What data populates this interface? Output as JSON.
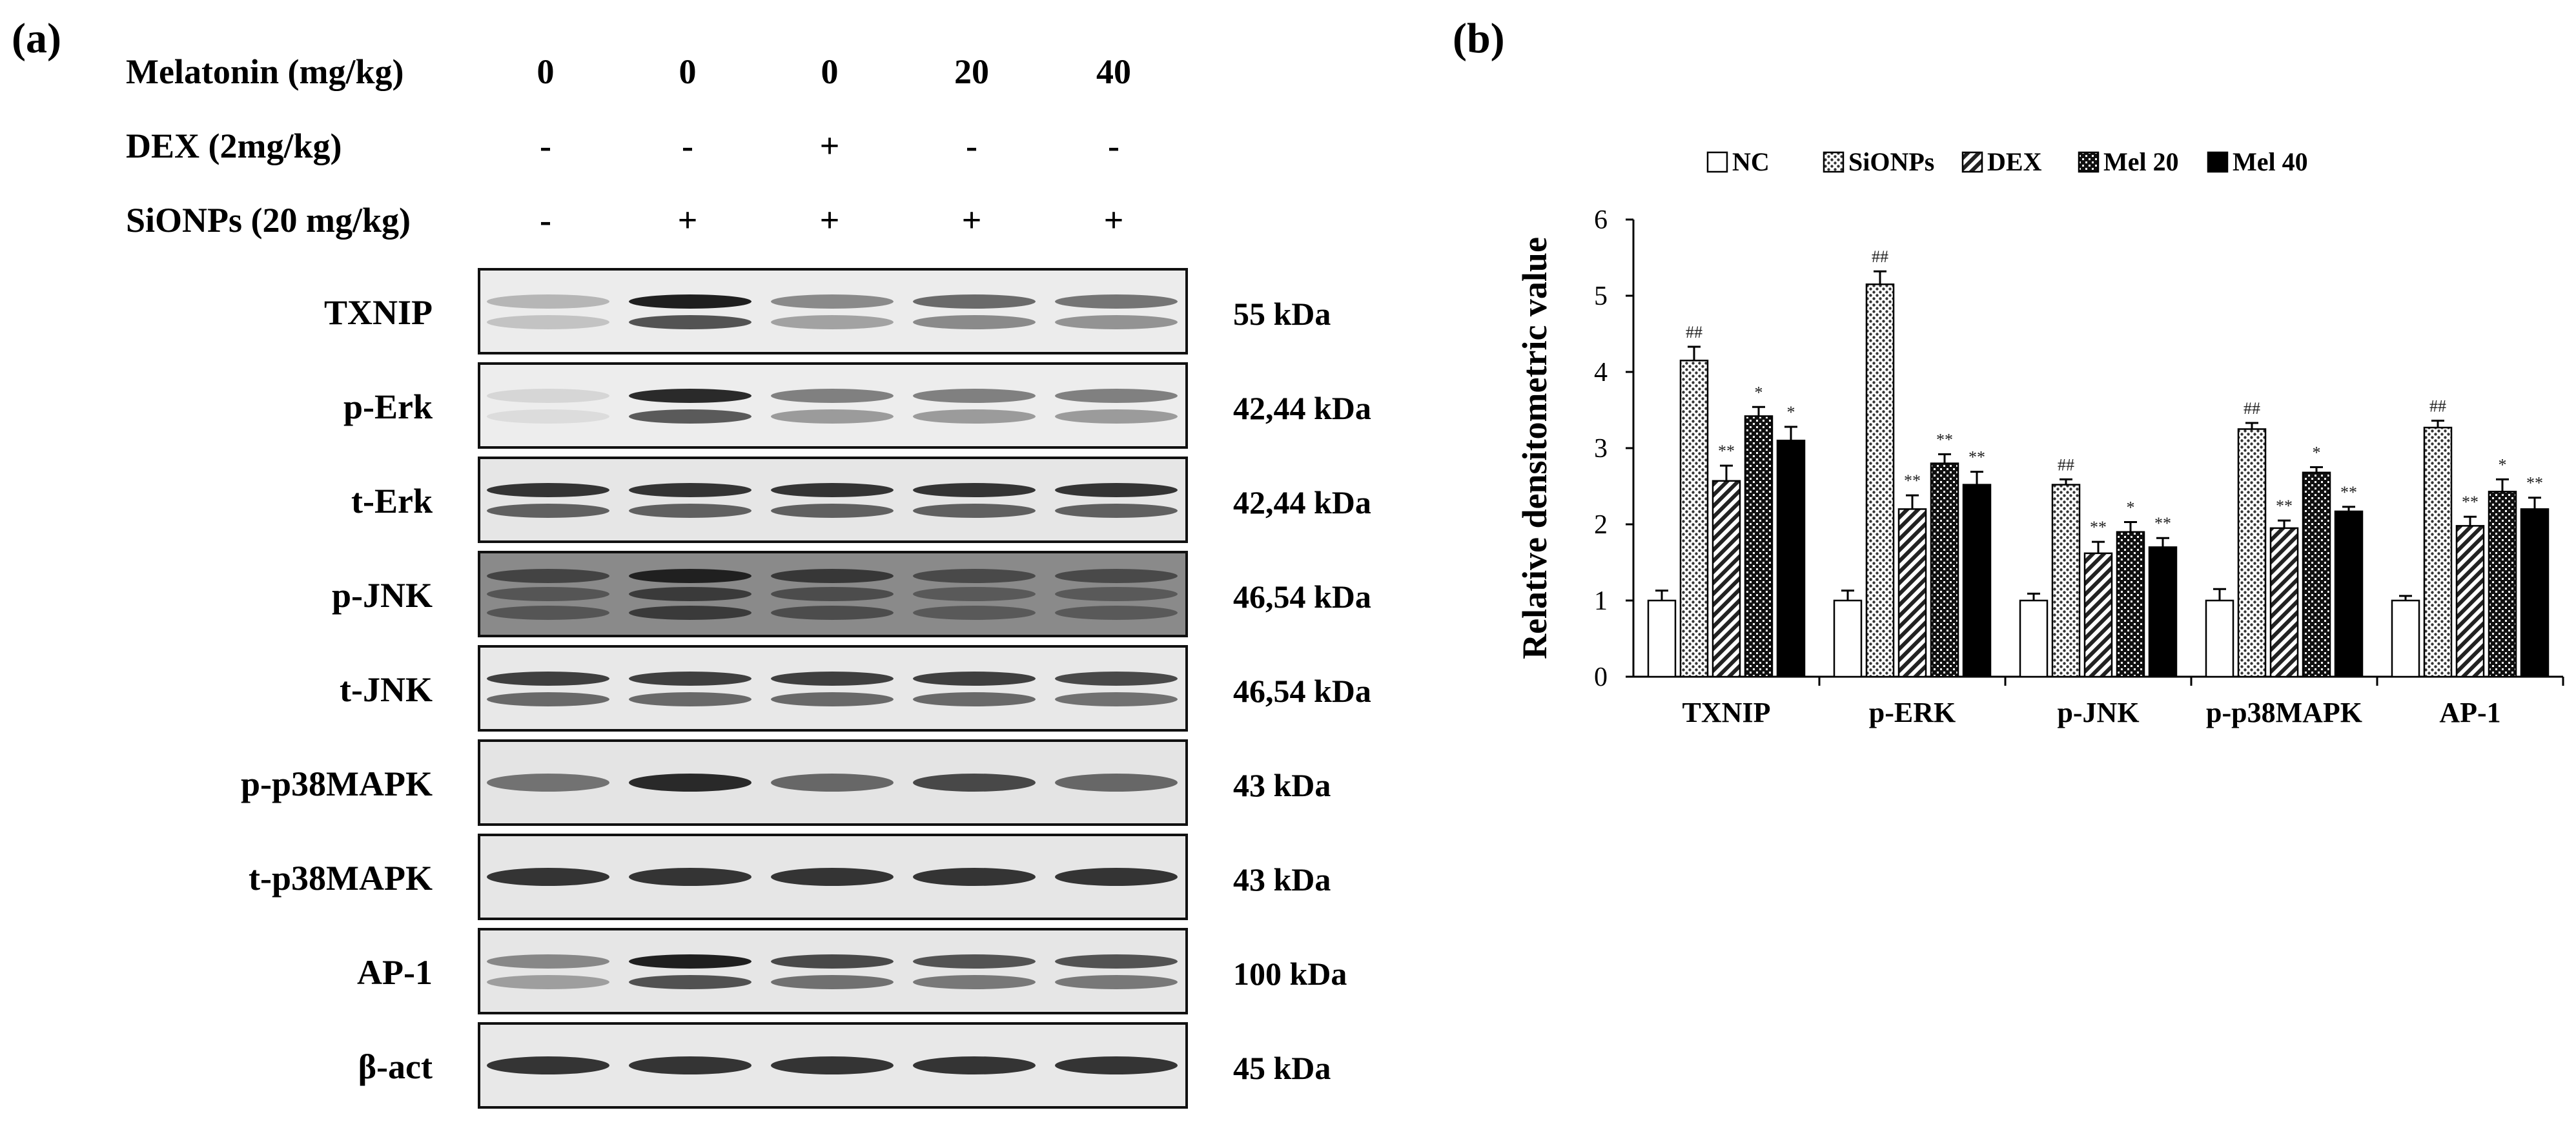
{
  "panel_a": {
    "label": "(a)",
    "conditions": [
      {
        "label": "Melatonin (mg/kg)",
        "values": [
          "0",
          "0",
          "0",
          "20",
          "40"
        ]
      },
      {
        "label": "DEX (2mg/kg)",
        "values": [
          "-",
          "-",
          "+",
          "-",
          "-"
        ]
      },
      {
        "label": "SiONPs (20 mg/kg)",
        "values": [
          "-",
          "+",
          "+",
          "+",
          "+"
        ]
      }
    ],
    "blots": [
      {
        "label": "TXNIP",
        "kda": "55 kDa",
        "bg": "#ececec",
        "intensity": [
          0.25,
          0.95,
          0.45,
          0.6,
          0.55
        ],
        "bands": 2
      },
      {
        "label": "p-Erk",
        "kda": "42,44 kDa",
        "bg": "#ededed",
        "intensity": [
          0.1,
          0.9,
          0.5,
          0.5,
          0.5
        ],
        "bands": 2
      },
      {
        "label": "t-Erk",
        "kda": "42,44 kDa",
        "bg": "#e6e6e6",
        "intensity": [
          0.85,
          0.85,
          0.85,
          0.85,
          0.85
        ],
        "bands": 2
      },
      {
        "label": "p-JNK",
        "kda": "46,54 kDa",
        "bg": "#8a8a8a",
        "intensity": [
          0.6,
          0.9,
          0.7,
          0.55,
          0.55
        ],
        "bands": 3
      },
      {
        "label": "t-JNK",
        "kda": "46,54 kDa",
        "bg": "#e8e8e8",
        "intensity": [
          0.8,
          0.8,
          0.8,
          0.8,
          0.75
        ],
        "bands": 2
      },
      {
        "label": "p-p38MAPK",
        "kda": "43 kDa",
        "bg": "#e4e4e4",
        "intensity": [
          0.55,
          0.9,
          0.6,
          0.75,
          0.6
        ],
        "bands": 1
      },
      {
        "label": "t-p38MAPK",
        "kda": "43 kDa",
        "bg": "#e6e6e6",
        "intensity": [
          0.85,
          0.85,
          0.85,
          0.85,
          0.85
        ],
        "bands": 1
      },
      {
        "label": "AP-1",
        "kda": "100 kDa",
        "bg": "#e6e6e6",
        "intensity": [
          0.45,
          0.95,
          0.75,
          0.7,
          0.7
        ],
        "bands": 2
      },
      {
        "label": "β-act",
        "kda": "45 kDa",
        "bg": "#e8e8e8",
        "intensity": [
          0.85,
          0.85,
          0.85,
          0.85,
          0.85
        ],
        "bands": 1
      }
    ]
  },
  "panel_b": {
    "label": "(b)"
  },
  "chart_data": {
    "type": "bar",
    "title": "",
    "xlabel": "",
    "ylabel": "Relative densitometric value",
    "ylim": [
      0,
      6
    ],
    "yticks": [
      "0",
      "1",
      "2",
      "3",
      "4",
      "5",
      "6"
    ],
    "categories": [
      "TXNIP",
      "p-ERK",
      "p-JNK",
      "p-p38MAPK",
      "AP-1"
    ],
    "legend_position": "top",
    "series": [
      {
        "name": "NC",
        "pattern": "white",
        "values": [
          1.0,
          1.0,
          1.0,
          1.0,
          1.0
        ],
        "errors": [
          0.13,
          0.13,
          0.09,
          0.15,
          0.06
        ],
        "labels": [
          "",
          "",
          "",
          "",
          ""
        ]
      },
      {
        "name": "SiONPs",
        "pattern": "dots",
        "values": [
          4.15,
          5.15,
          2.52,
          3.25,
          3.27
        ],
        "errors": [
          0.18,
          0.17,
          0.07,
          0.08,
          0.09
        ],
        "labels": [
          "##",
          "##",
          "##",
          "##",
          "##"
        ]
      },
      {
        "name": "DEX",
        "pattern": "diagonal",
        "values": [
          2.57,
          2.2,
          1.62,
          1.95,
          1.98
        ],
        "errors": [
          0.2,
          0.18,
          0.15,
          0.1,
          0.12
        ],
        "labels": [
          "**",
          "**",
          "**",
          "**",
          "**"
        ]
      },
      {
        "name": "Mel 20",
        "pattern": "checker",
        "values": [
          3.42,
          2.8,
          1.9,
          2.68,
          2.43
        ],
        "errors": [
          0.12,
          0.12,
          0.13,
          0.07,
          0.16
        ],
        "labels": [
          "*",
          "**",
          "*",
          "*",
          "*"
        ]
      },
      {
        "name": "Mel 40",
        "pattern": "black",
        "values": [
          3.1,
          2.52,
          1.7,
          2.17,
          2.2
        ],
        "errors": [
          0.18,
          0.17,
          0.12,
          0.06,
          0.15
        ],
        "labels": [
          "*",
          "**",
          "**",
          "**",
          "**"
        ]
      }
    ]
  }
}
